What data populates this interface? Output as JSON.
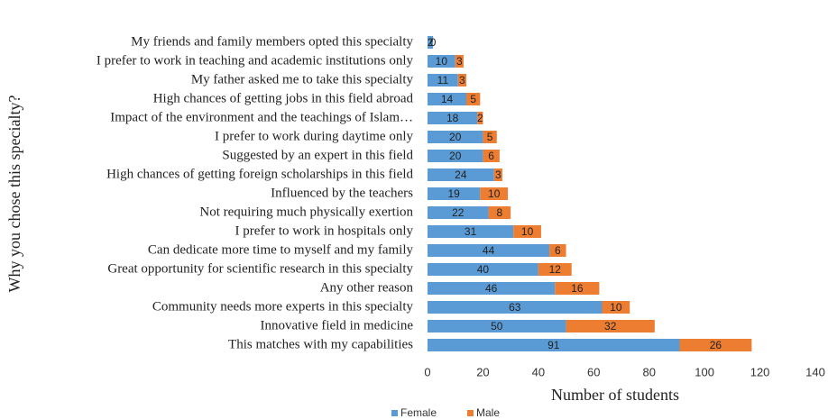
{
  "chart_data": {
    "type": "stacked-bar-horizontal",
    "x_label": "Number of students",
    "y_label": "Why you chose this specialty?",
    "categories": [
      "My friends and family members opted this specialty",
      "I prefer to work in teaching and academic institutions only",
      "My father asked me to take this specialty",
      "High chances of getting jobs in this field abroad",
      "Impact of the environment and the teachings of Islam…",
      "I prefer to work during daytime only",
      "Suggested by an expert in this field",
      "High chances of getting foreign scholarships in this field",
      "Influenced by the teachers",
      "Not requiring much physically exertion",
      "I prefer to work in hospitals only",
      "Can dedicate more time to myself and my family",
      "Great opportunity for scientific research in this specialty",
      "Any other reason",
      "Community needs more experts in this specialty",
      "Innovative field in medicine",
      "This matches with my capabilities"
    ],
    "series": [
      {
        "name": "Female",
        "color": "#5b9bd5",
        "values": [
          2,
          10,
          11,
          14,
          18,
          20,
          20,
          24,
          19,
          22,
          31,
          44,
          40,
          46,
          63,
          50,
          91
        ]
      },
      {
        "name": "Male",
        "color": "#ed7d31",
        "values": [
          0,
          3,
          3,
          5,
          2,
          5,
          6,
          3,
          10,
          8,
          10,
          6,
          12,
          16,
          10,
          32,
          26
        ]
      }
    ],
    "xlim": [
      0,
      140
    ],
    "xticks": [
      0,
      20,
      40,
      60,
      80,
      100,
      120,
      140
    ],
    "legend": "bottom"
  }
}
